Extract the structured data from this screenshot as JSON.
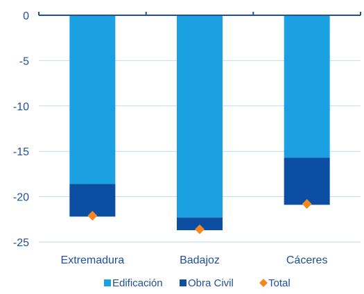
{
  "chart_data": {
    "type": "bar",
    "stacked": true,
    "categories": [
      "Extremadura",
      "Badajoz",
      "Cáceres"
    ],
    "series": [
      {
        "name": "Edificación",
        "kind": "bar",
        "color": "#1BA1E2",
        "values": [
          -18.6,
          -22.3,
          -15.7
        ]
      },
      {
        "name": "Obra Civil",
        "kind": "bar",
        "color": "#0B4EA2",
        "values": [
          -3.6,
          -1.4,
          -5.2
        ]
      },
      {
        "name": "Total",
        "kind": "marker",
        "color": "#F5891F",
        "values": [
          -22.1,
          -23.6,
          -20.8
        ]
      }
    ],
    "y_ticks": [
      "0",
      "-5",
      "-10",
      "-15",
      "-20",
      "-25"
    ],
    "ylim": [
      -25,
      0
    ],
    "grid": true,
    "legend_position": "bottom",
    "axis_color": "#1F4E9A",
    "grid_color": "#BFD9F2"
  }
}
